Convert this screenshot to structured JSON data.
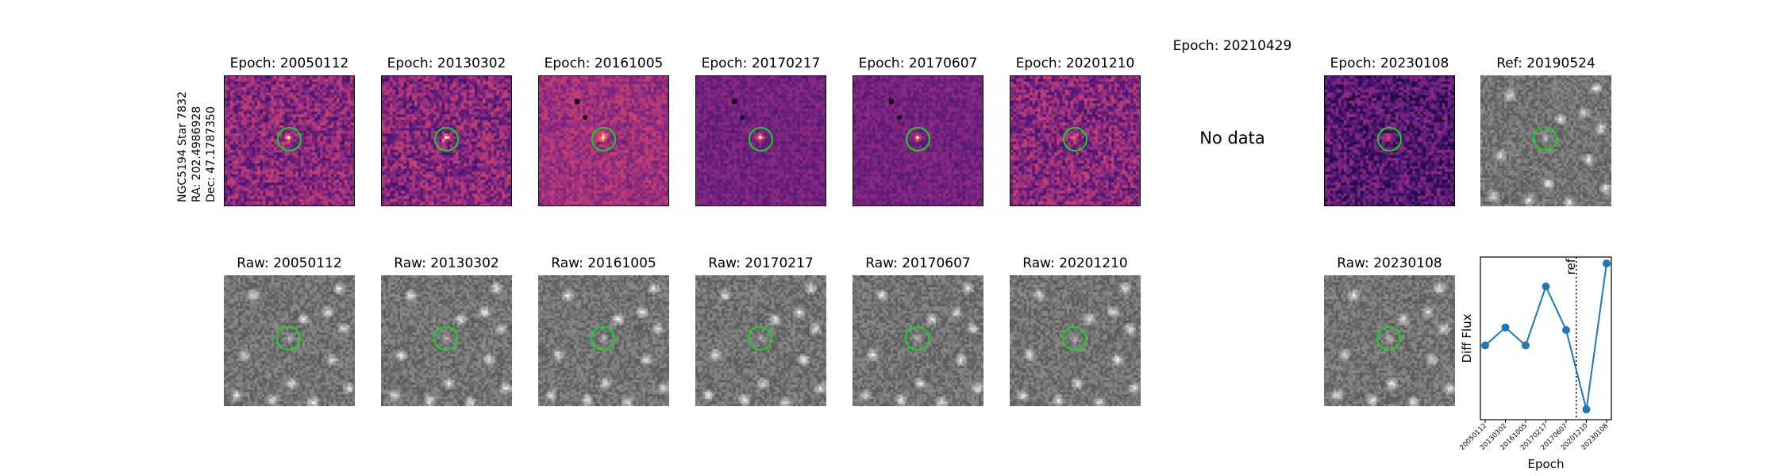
{
  "star": {
    "name_line": "NGC5194 Star 7832",
    "ra_line": "RA: 202.4986928",
    "dec_line": "Dec: 47.1787350"
  },
  "diff_titles": [
    "Epoch: 20050112",
    "Epoch: 20130302",
    "Epoch: 20161005",
    "Epoch: 20170217",
    "Epoch: 20170607",
    "Epoch: 20201210",
    "Epoch: 20210429",
    "Epoch: 20230108"
  ],
  "ref_title": "Ref: 20190524",
  "no_data_label": "No data",
  "raw_titles": [
    "Raw: 20050112",
    "Raw: 20130302",
    "Raw: 20161005",
    "Raw: 20170217",
    "Raw: 20170607",
    "Raw: 20201210",
    "Raw: 20230108"
  ],
  "colors": {
    "circle": "#19d22a",
    "line": "#1f77b4",
    "colormap": "magma"
  },
  "chart_data": {
    "type": "line",
    "title": "",
    "xlabel": "Epoch",
    "ylabel": "Diff Flux",
    "x": [
      "20050112",
      "20130302",
      "20161005",
      "20170217",
      "20170607",
      "20201210",
      "20230108"
    ],
    "values": [
      0.36,
      0.5,
      0.36,
      0.82,
      0.48,
      -0.14,
      1.0
    ],
    "ylim": [
      -0.22,
      1.05
    ],
    "marker": "o",
    "reference_line": {
      "label": "ref",
      "between": [
        "20170607",
        "20201210"
      ],
      "style": "dotted"
    },
    "yticks_visible": false
  }
}
